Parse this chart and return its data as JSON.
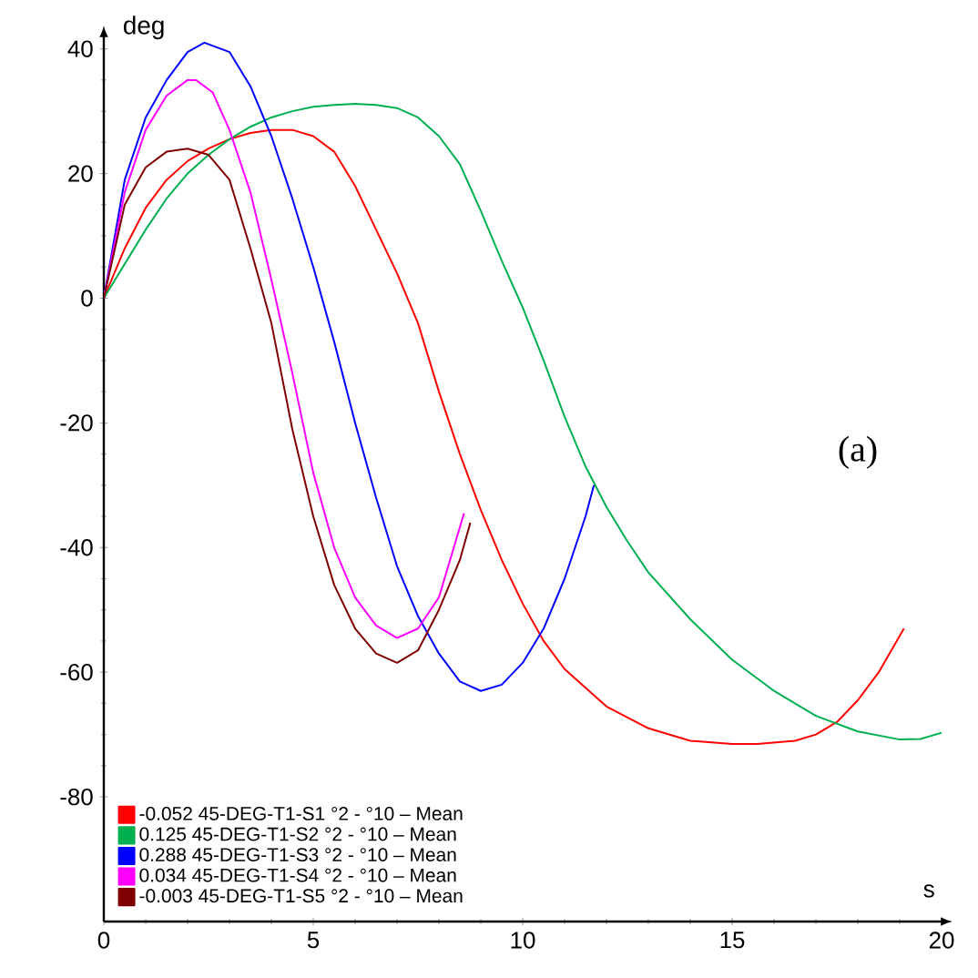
{
  "chart_data": {
    "type": "line",
    "xlabel": "s",
    "ylabel": "deg",
    "xlim": [
      0,
      20
    ],
    "ylim": [
      -100,
      42
    ],
    "xticks": [
      0,
      5,
      10,
      15,
      20
    ],
    "yticks": [
      -80,
      -60,
      -40,
      -20,
      0,
      20,
      40
    ],
    "legend": "bottom left",
    "annotations": [
      "(a)"
    ],
    "series": [
      {
        "name": "-0.052  45-DEG-T1-S1 °2 - °10 – Mean",
        "color": "#ff0000",
        "x": [
          0,
          0.5,
          1,
          1.5,
          2,
          2.5,
          3,
          3.5,
          4,
          4.5,
          5,
          5.5,
          6,
          6.5,
          7,
          7.5,
          8,
          8.5,
          9,
          9.5,
          10,
          10.5,
          11,
          12,
          13,
          14,
          15,
          15.6,
          16.5,
          17,
          17.5,
          18,
          18.5,
          19.1
        ],
        "values": [
          0,
          8,
          14.5,
          19,
          22,
          24,
          25.5,
          26.5,
          27,
          27,
          26,
          23.5,
          18,
          11,
          4,
          -4,
          -15,
          -25,
          -34,
          -42,
          -49,
          -55,
          -59.5,
          -65.5,
          -69,
          -71,
          -71.5,
          -71.5,
          -71,
          -70,
          -68,
          -64.5,
          -60,
          -53
        ]
      },
      {
        "name": "0.125  45-DEG-T1-S2 °2 - °10 – Mean",
        "color": "#00b050",
        "x": [
          0,
          0.5,
          1,
          1.5,
          2,
          2.5,
          3,
          3.5,
          4,
          4.5,
          5,
          5.5,
          6,
          6.5,
          7,
          7.5,
          8,
          8.5,
          9,
          9.5,
          10,
          10.5,
          11,
          11.5,
          12,
          12.5,
          13,
          14,
          15,
          16,
          17,
          18,
          19,
          19.5,
          20
        ],
        "values": [
          0,
          5.5,
          11,
          16,
          20,
          23,
          25.5,
          27.5,
          29,
          30,
          30.7,
          31,
          31.2,
          31,
          30.5,
          29,
          26,
          21.5,
          14,
          6,
          -1.5,
          -10,
          -19,
          -27,
          -33.5,
          -39,
          -44,
          -51.5,
          -58,
          -63,
          -67,
          -69.5,
          -70.8,
          -70.7,
          -69.7
        ]
      },
      {
        "name": "0.288  45-DEG-T1-S3 °2 - °10 – Mean",
        "color": "#0000ff",
        "x": [
          0,
          0.5,
          1,
          1.5,
          2,
          2.4,
          3,
          3.5,
          4,
          4.5,
          5,
          5.5,
          6,
          6.5,
          7,
          7.5,
          8,
          8.5,
          9,
          9.5,
          10,
          10.5,
          11,
          11.5,
          11.7
        ],
        "values": [
          0,
          19,
          29,
          35,
          39.5,
          41,
          39.5,
          34,
          26,
          16,
          5,
          -7,
          -20,
          -32,
          -43,
          -51,
          -57,
          -61.5,
          -63,
          -62,
          -58.5,
          -53,
          -45,
          -35,
          -30
        ]
      },
      {
        "name": "0.034  45-DEG-T1-S4 °2 - °10 – Mean",
        "color": "#ff00ff",
        "x": [
          0,
          0.5,
          1,
          1.5,
          2,
          2.2,
          2.6,
          3,
          3.5,
          4,
          4.5,
          5,
          5.5,
          6,
          6.5,
          7,
          7.5,
          8,
          8.6
        ],
        "values": [
          0,
          17,
          27,
          32.5,
          35,
          35,
          33,
          27,
          17,
          3,
          -12,
          -28,
          -40,
          -48,
          -52.5,
          -54.5,
          -53,
          -48,
          -34.5
        ]
      },
      {
        "name": "-0.003  45-DEG-T1-S5 °2 - °10 – Mean",
        "color": "#7f0000",
        "x": [
          0,
          0.5,
          1,
          1.5,
          2,
          2.5,
          3,
          3.5,
          4,
          4.5,
          5,
          5.5,
          6,
          6.5,
          7,
          7.5,
          8,
          8.5,
          8.75
        ],
        "values": [
          0,
          15,
          21,
          23.5,
          24,
          23,
          19,
          8,
          -4,
          -21,
          -35,
          -46,
          -53,
          -57,
          -58.5,
          -56.5,
          -50,
          -42,
          -36
        ]
      }
    ]
  }
}
